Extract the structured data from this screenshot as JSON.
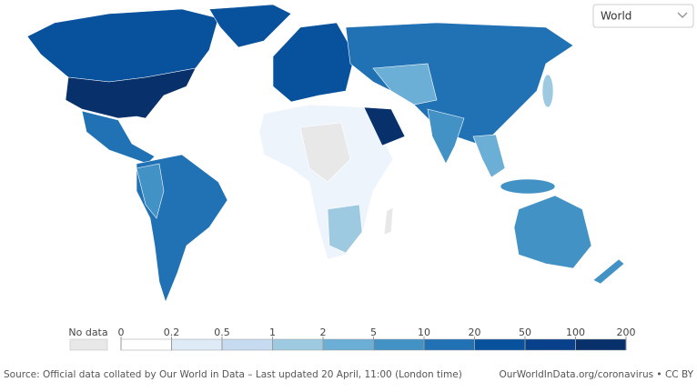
{
  "dropdown": {
    "selected": "World"
  },
  "legend": {
    "no_data_label": "No data",
    "no_data_color": "#e8e8e8",
    "ticks": [
      0,
      0.2,
      0.5,
      1,
      2,
      5,
      10,
      20,
      50,
      100,
      200
    ],
    "colors": [
      "#ffffff",
      "#deebf7",
      "#c6dbef",
      "#9ecae1",
      "#6baed6",
      "#4292c6",
      "#2171b5",
      "#08519c",
      "#08408b",
      "#08306b"
    ]
  },
  "footer": {
    "source": "Source: Official data collated by Our World in Data – Last updated 20 April, 11:00 (London time)",
    "link": "OurWorldInData.org/coronavirus • CC BY"
  }
}
